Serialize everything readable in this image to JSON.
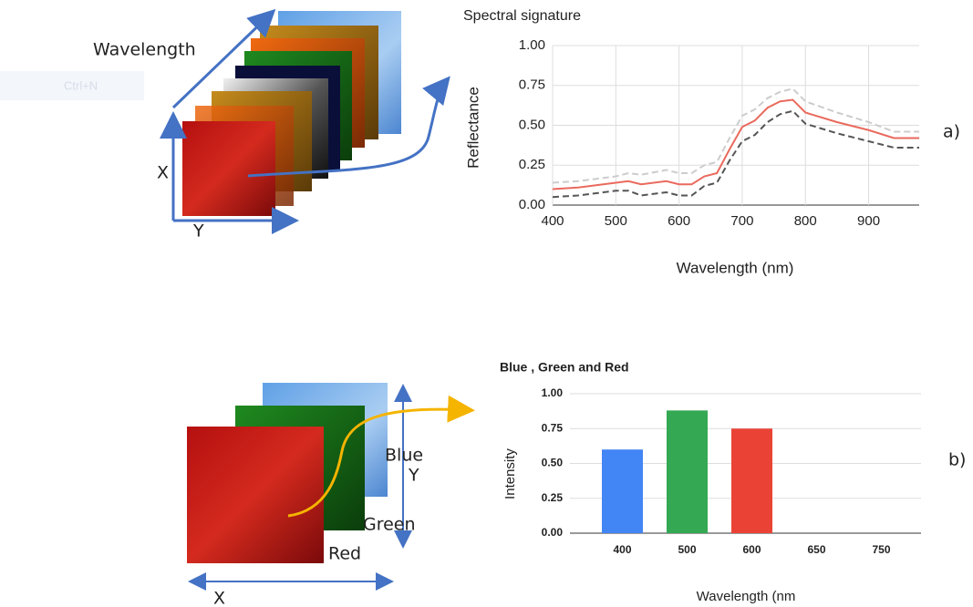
{
  "chart_data": [
    {
      "type": "line",
      "title": "Spectral signature",
      "xlabel": "Wavelength (nm)",
      "ylabel": "Reflectance",
      "x": [
        400,
        440,
        480,
        500,
        520,
        540,
        580,
        600,
        620,
        640,
        660,
        680,
        700,
        720,
        740,
        760,
        780,
        800,
        850,
        900,
        940,
        980
      ],
      "series": [
        {
          "color": "#cccccc",
          "dashed": true,
          "values": [
            0.14,
            0.15,
            0.17,
            0.18,
            0.2,
            0.19,
            0.22,
            0.2,
            0.2,
            0.25,
            0.27,
            0.42,
            0.56,
            0.6,
            0.67,
            0.71,
            0.73,
            0.65,
            0.58,
            0.52,
            0.46,
            0.46
          ]
        },
        {
          "color": "#ea6a5e",
          "dashed": false,
          "values": [
            0.1,
            0.11,
            0.13,
            0.14,
            0.15,
            0.13,
            0.15,
            0.13,
            0.13,
            0.18,
            0.2,
            0.35,
            0.49,
            0.53,
            0.61,
            0.65,
            0.66,
            0.58,
            0.52,
            0.47,
            0.42,
            0.42
          ]
        },
        {
          "color": "#555555",
          "dashed": true,
          "values": [
            0.05,
            0.06,
            0.08,
            0.09,
            0.09,
            0.06,
            0.08,
            0.06,
            0.06,
            0.12,
            0.14,
            0.28,
            0.4,
            0.44,
            0.52,
            0.57,
            0.59,
            0.51,
            0.45,
            0.4,
            0.36,
            0.36
          ]
        }
      ],
      "xlim": [
        400,
        980
      ],
      "xticks": [
        400,
        500,
        600,
        700,
        800,
        900
      ],
      "ylim": [
        0,
        1
      ],
      "yticks": [
        {
          "value": 0,
          "label": "0.00"
        },
        {
          "value": 0.25,
          "label": "0.25"
        },
        {
          "value": 0.5,
          "label": "0.50"
        },
        {
          "value": 0.75,
          "label": "0.75"
        },
        {
          "value": 1,
          "label": "1.00"
        }
      ],
      "grid": true,
      "xgrid": true
    },
    {
      "type": "bar",
      "title": "Blue , Green  and Red",
      "xlabel": "Wavelength (nm",
      "ylabel": "Intensity",
      "categories": [
        "400",
        "500",
        "600",
        "650",
        "750"
      ],
      "values": [
        0.6,
        0.88,
        0.75,
        null,
        null
      ],
      "colors": [
        "#4285f4",
        "#34a853",
        "#ea4335",
        null,
        null
      ],
      "ylim": [
        0,
        1
      ],
      "yticks": [
        {
          "value": 0,
          "label": "0.00"
        },
        {
          "value": 0.25,
          "label": "0.25"
        },
        {
          "value": 0.5,
          "label": "0.50"
        },
        {
          "value": 0.75,
          "label": "0.75"
        },
        {
          "value": 1,
          "label": "1.00"
        }
      ],
      "grid": true,
      "xgrid": false
    }
  ],
  "hypercube": {
    "axis_labels": [
      "Wavelength",
      "X",
      "Y"
    ]
  },
  "rgb_stack": {
    "band_labels": [
      "Blue",
      "Green",
      "Red"
    ],
    "axis_labels": [
      "X",
      "Y"
    ]
  },
  "panel_labels": [
    "a)",
    "b)"
  ],
  "background_text": "Ctrl+N"
}
